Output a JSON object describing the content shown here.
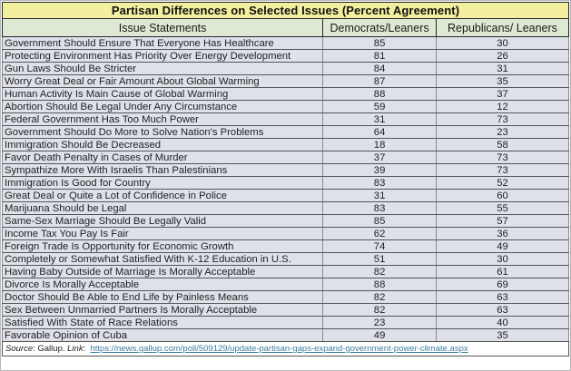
{
  "title": "Partisan Differences on Selected Issues (Percent Agreement)",
  "columns": [
    "Issue Statements",
    "Democrats/Leaners",
    "Republicans/ Leaners"
  ],
  "table": {
    "rows": [
      {
        "statement": "Government Should Ensure That Everyone Has Healthcare",
        "dem": "85",
        "rep": "30"
      },
      {
        "statement": "Protecting Environment Has Priority Over Energy Development",
        "dem": "81",
        "rep": "26"
      },
      {
        "statement": "Gun Laws Should Be Stricter",
        "dem": "84",
        "rep": "31"
      },
      {
        "statement": "Worry Great Deal or Fair Amount About Global Warming",
        "dem": "87",
        "rep": "35"
      },
      {
        "statement": "Human Activity Is Main Cause of Global Warming",
        "dem": "88",
        "rep": "37"
      },
      {
        "statement": "Abortion Should Be Legal Under Any Circumstance",
        "dem": "59",
        "rep": "12"
      },
      {
        "statement": "Federal Government Has Too Much Power",
        "dem": "31",
        "rep": "73"
      },
      {
        "statement": "Government Should Do More to Solve Nation's Problems",
        "dem": "64",
        "rep": "23"
      },
      {
        "statement": "Immigration Should Be Decreased",
        "dem": "18",
        "rep": "58"
      },
      {
        "statement": "Favor Death Penalty in Cases of Murder",
        "dem": "37",
        "rep": "73"
      },
      {
        "statement": "Sympathize More With Israelis Than Palestinians",
        "dem": "39",
        "rep": "73"
      },
      {
        "statement": "Immigration Is Good for Country",
        "dem": "83",
        "rep": "52"
      },
      {
        "statement": "Great Deal or Quite a Lot of Confidence in Police",
        "dem": "31",
        "rep": "60"
      },
      {
        "statement": "Marijuana Should be Legal",
        "dem": "83",
        "rep": "55"
      },
      {
        "statement": "Same-Sex Marriage Should Be Legally Valid",
        "dem": "85",
        "rep": "57"
      },
      {
        "statement": "Income Tax You Pay Is Fair",
        "dem": "62",
        "rep": "36"
      },
      {
        "statement": "Foreign Trade Is Opportunity for Economic Growth",
        "dem": "74",
        "rep": "49"
      },
      {
        "statement": "Completely or Somewhat Satisfied With K-12 Education in U.S.",
        "dem": "51",
        "rep": "30"
      },
      {
        "statement": "Having Baby Outside of Marriage Is Morally Acceptable",
        "dem": "82",
        "rep": "61"
      },
      {
        "statement": "Divorce Is Morally Acceptable",
        "dem": "88",
        "rep": "69"
      },
      {
        "statement": "Doctor Should Be Able to End Life by Painless Means",
        "dem": "82",
        "rep": "63"
      },
      {
        "statement": "Sex Between Unmarried Partners Is Morally Acceptable",
        "dem": "82",
        "rep": "63"
      },
      {
        "statement": "Satisfied With State of Race Relations",
        "dem": "23",
        "rep": "40"
      },
      {
        "statement": "Favorable Opinion of Cuba",
        "dem": "49",
        "rep": "35"
      }
    ]
  },
  "source": {
    "source_label": "Source",
    "source_sep": ": Gallup. ",
    "link_label": "Link",
    "link_sep": ":  ",
    "url": "https://news.gallup.com/poll/509129/update-partisan-gaps-expand-government-power-climate.aspx"
  },
  "colors": {
    "title_bg": "#f2ef9e",
    "header_bg": "#dde9d2",
    "row_bg": "#dfe1ea",
    "footer_bg": "#ffffff",
    "link": "#3b7e9e",
    "border_dark": "#262626",
    "border_row": "#565656"
  },
  "chart_data": {
    "type": "table",
    "title": "Partisan Differences on Selected Issues (Percent Agreement)",
    "categories": [
      "Government Should Ensure That Everyone Has Healthcare",
      "Protecting Environment Has Priority Over Energy Development",
      "Gun Laws Should Be Stricter",
      "Worry Great Deal or Fair Amount About Global Warming",
      "Human Activity Is Main Cause of Global Warming",
      "Abortion Should Be Legal Under Any Circumstance",
      "Federal Government Has Too Much Power",
      "Government Should Do More to Solve Nation's Problems",
      "Immigration Should Be Decreased",
      "Favor Death Penalty in Cases of Murder",
      "Sympathize More With Israelis Than Palestinians",
      "Immigration Is Good for Country",
      "Great Deal or Quite a Lot of Confidence in Police",
      "Marijuana Should be Legal",
      "Same-Sex Marriage Should Be Legally Valid",
      "Income Tax You Pay Is Fair",
      "Foreign Trade Is Opportunity for Economic Growth",
      "Completely or Somewhat Satisfied With K-12 Education in U.S.",
      "Having Baby Outside of Marriage Is Morally Acceptable",
      "Divorce Is Morally Acceptable",
      "Doctor Should Be Able to End Life by Painless Means",
      "Sex Between Unmarried Partners Is Morally Acceptable",
      "Satisfied With State of Race Relations",
      "Favorable Opinion of Cuba"
    ],
    "series": [
      {
        "name": "Democrats/Leaners",
        "values": [
          85,
          81,
          84,
          87,
          88,
          59,
          31,
          64,
          18,
          37,
          39,
          83,
          31,
          83,
          85,
          62,
          74,
          51,
          82,
          88,
          82,
          82,
          23,
          49
        ]
      },
      {
        "name": "Republicans/ Leaners",
        "values": [
          30,
          26,
          31,
          35,
          37,
          12,
          73,
          23,
          58,
          73,
          73,
          52,
          60,
          55,
          57,
          36,
          49,
          30,
          61,
          69,
          63,
          63,
          40,
          35
        ]
      }
    ],
    "unit": "percent agreement",
    "source": "Gallup"
  }
}
